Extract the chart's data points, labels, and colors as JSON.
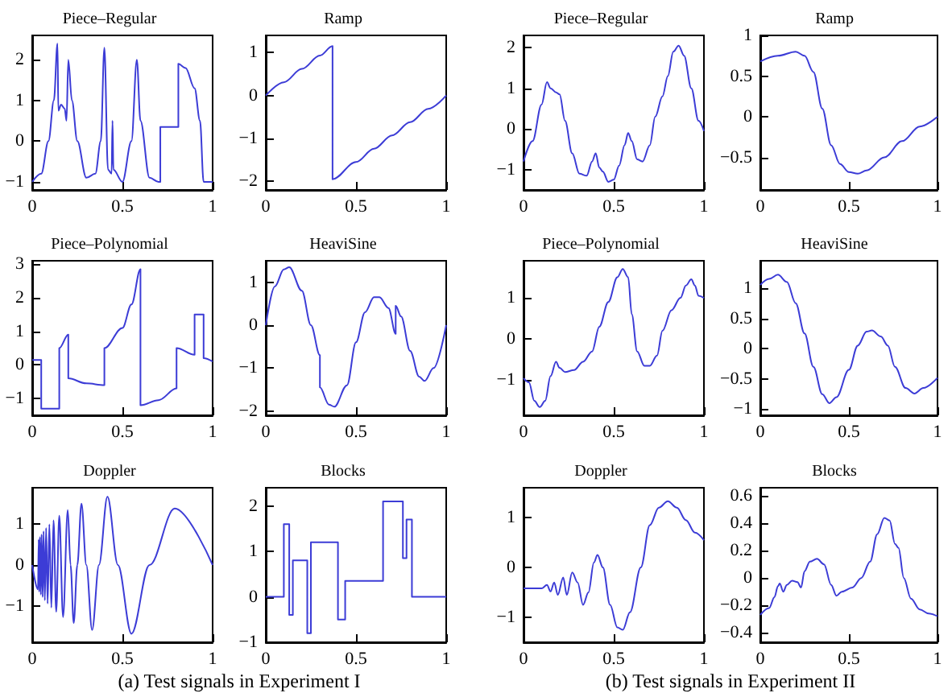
{
  "chart_data": [
    {
      "type": "line",
      "title": "Piece–Regular",
      "xlim": [
        0,
        1
      ],
      "xticks": [
        0,
        0.5,
        1
      ],
      "ylim": [
        -1.2,
        2.6
      ],
      "yticks": [
        -1,
        0,
        1,
        2
      ],
      "series": [
        {
          "color": "#3c3cd6",
          "x": [
            0,
            0.05,
            0.09,
            0.12,
            0.14,
            0.145,
            0.16,
            0.18,
            0.19,
            0.2,
            0.22,
            0.25,
            0.3,
            0.35,
            0.38,
            0.4,
            0.42,
            0.44,
            0.445,
            0.45,
            0.5,
            0.55,
            0.58,
            0.6,
            0.65,
            0.7,
            0.71,
            0.71,
            0.81,
            0.81,
            0.85,
            0.9,
            0.93,
            0.95,
            1
          ],
          "values": [
            -1,
            -0.8,
            0,
            1,
            2.4,
            0.75,
            0.9,
            0.8,
            0.5,
            2.0,
            1,
            0,
            -0.9,
            -0.8,
            0,
            2.3,
            -0.7,
            -0.8,
            0.5,
            -0.7,
            -1,
            0,
            2.0,
            0.5,
            -0.9,
            -1,
            -1,
            0.35,
            0.35,
            1.9,
            1.8,
            1.3,
            0.5,
            -1,
            -1
          ]
        }
      ]
    },
    {
      "type": "line",
      "title": "Ramp",
      "xlim": [
        0,
        1
      ],
      "xticks": [
        0,
        0.5,
        1
      ],
      "ylim": [
        -2.2,
        1.4
      ],
      "yticks": [
        -2,
        -1,
        0,
        1
      ],
      "series": [
        {
          "color": "#3c3cd6",
          "x": [
            0,
            0.1,
            0.2,
            0.3,
            0.37,
            0.37,
            0.5,
            0.6,
            0.7,
            0.8,
            0.9,
            1
          ],
          "values": [
            0,
            0.31,
            0.62,
            0.93,
            1.15,
            -1.95,
            -1.55,
            -1.24,
            -0.93,
            -0.62,
            -0.31,
            0
          ]
        }
      ]
    },
    {
      "type": "line",
      "title": "Piece–Regular",
      "xlim": [
        0,
        1
      ],
      "xticks": [
        0,
        0.5,
        1
      ],
      "ylim": [
        -1.5,
        2.3
      ],
      "yticks": [
        -1,
        0,
        1,
        2
      ],
      "series": [
        {
          "color": "#3c3cd6",
          "x": [
            0,
            0.05,
            0.1,
            0.13,
            0.15,
            0.18,
            0.2,
            0.23,
            0.27,
            0.31,
            0.35,
            0.38,
            0.4,
            0.42,
            0.44,
            0.47,
            0.5,
            0.53,
            0.56,
            0.58,
            0.6,
            0.63,
            0.66,
            0.7,
            0.73,
            0.77,
            0.8,
            0.83,
            0.86,
            0.89,
            0.93,
            0.97,
            1
          ],
          "values": [
            -0.8,
            -0.3,
            0.6,
            1.15,
            1.0,
            0.9,
            0.85,
            0.2,
            -0.6,
            -1.1,
            -1.15,
            -0.8,
            -0.6,
            -0.95,
            -1.05,
            -1.3,
            -1.25,
            -0.9,
            -0.4,
            -0.1,
            -0.3,
            -0.75,
            -0.8,
            -0.4,
            0.3,
            0.8,
            1.3,
            1.9,
            2.05,
            1.8,
            1.0,
            0.2,
            -0.05
          ]
        }
      ]
    },
    {
      "type": "line",
      "title": "Ramp",
      "xlim": [
        0,
        1
      ],
      "xticks": [
        0,
        0.5,
        1
      ],
      "ylim": [
        -0.9,
        1
      ],
      "yticks": [
        -0.5,
        0,
        0.5,
        1
      ],
      "series": [
        {
          "color": "#3c3cd6",
          "x": [
            0,
            0.1,
            0.2,
            0.25,
            0.3,
            0.35,
            0.4,
            0.45,
            0.5,
            0.55,
            0.6,
            0.7,
            0.8,
            0.9,
            1
          ],
          "values": [
            0.68,
            0.75,
            0.8,
            0.75,
            0.55,
            0.1,
            -0.35,
            -0.58,
            -0.68,
            -0.7,
            -0.66,
            -0.5,
            -0.3,
            -0.12,
            0
          ]
        }
      ]
    },
    {
      "type": "line",
      "title": "Piece–Polynomial",
      "xlim": [
        0,
        1
      ],
      "xticks": [
        0,
        0.5,
        1
      ],
      "ylim": [
        -1.5,
        3.1
      ],
      "yticks": [
        -1,
        0,
        1,
        2,
        3
      ],
      "series": [
        {
          "color": "#3c3cd6",
          "x": [
            0,
            0.05,
            0.05,
            0.15,
            0.15,
            0.2,
            0.2,
            0.3,
            0.4,
            0.4,
            0.5,
            0.55,
            0.6,
            0.6,
            0.7,
            0.8,
            0.8,
            0.9,
            0.9,
            0.95,
            0.95,
            1
          ],
          "values": [
            0.15,
            0.15,
            -1.3,
            -1.3,
            0.5,
            0.9,
            -0.4,
            -0.55,
            -0.6,
            0.5,
            1.1,
            1.8,
            2.85,
            -1.2,
            -1.05,
            -0.7,
            0.5,
            0.3,
            1.5,
            1.5,
            0.2,
            0.1
          ]
        }
      ]
    },
    {
      "type": "line",
      "title": "HeaviSine",
      "xlim": [
        0,
        1
      ],
      "xticks": [
        0,
        0.5,
        1
      ],
      "ylim": [
        -2.1,
        1.5
      ],
      "yticks": [
        -2,
        -1,
        0,
        1
      ],
      "series": [
        {
          "color": "#3c3cd6",
          "x": [
            0,
            0.05,
            0.1,
            0.13,
            0.2,
            0.25,
            0.3,
            0.3,
            0.35,
            0.38,
            0.45,
            0.5,
            0.55,
            0.6,
            0.63,
            0.68,
            0.72,
            0.72,
            0.75,
            0.8,
            0.85,
            0.88,
            0.93,
            1
          ],
          "values": [
            0,
            0.9,
            1.3,
            1.35,
            0.8,
            0,
            -0.7,
            -1.45,
            -1.85,
            -1.9,
            -1.4,
            -0.4,
            0.3,
            0.65,
            0.65,
            0.4,
            -0.2,
            0.45,
            0.2,
            -0.6,
            -1.2,
            -1.3,
            -1,
            0
          ]
        }
      ]
    },
    {
      "type": "line",
      "title": "Piece–Polynomial",
      "xlim": [
        0,
        1
      ],
      "xticks": [
        0,
        0.5,
        1
      ],
      "ylim": [
        -1.85,
        1.9
      ],
      "yticks": [
        -1,
        0,
        1
      ],
      "series": [
        {
          "color": "#3c3cd6",
          "x": [
            0,
            0.03,
            0.06,
            0.09,
            0.12,
            0.15,
            0.18,
            0.2,
            0.23,
            0.28,
            0.33,
            0.38,
            0.42,
            0.47,
            0.52,
            0.55,
            0.58,
            0.6,
            0.63,
            0.67,
            0.7,
            0.74,
            0.77,
            0.82,
            0.87,
            0.9,
            0.93,
            0.95,
            0.97,
            1
          ],
          "values": [
            -0.95,
            -1.05,
            -1.5,
            -1.65,
            -1.5,
            -0.9,
            -0.55,
            -0.7,
            -0.8,
            -0.75,
            -0.55,
            -0.3,
            0.3,
            0.9,
            1.5,
            1.7,
            1.5,
            0.6,
            -0.3,
            -0.65,
            -0.65,
            -0.4,
            0.2,
            0.7,
            1.0,
            1.3,
            1.45,
            1.3,
            1.05,
            1.0
          ]
        }
      ]
    },
    {
      "type": "line",
      "title": "HeaviSine",
      "xlim": [
        0,
        1
      ],
      "xticks": [
        0,
        0.5,
        1
      ],
      "ylim": [
        -1.1,
        1.45
      ],
      "yticks": [
        -1,
        -0.5,
        0,
        0.5,
        1
      ],
      "series": [
        {
          "color": "#3c3cd6",
          "x": [
            0,
            0.05,
            0.1,
            0.15,
            0.2,
            0.25,
            0.3,
            0.35,
            0.39,
            0.43,
            0.5,
            0.55,
            0.6,
            0.63,
            0.68,
            0.72,
            0.76,
            0.82,
            0.87,
            0.92,
            1
          ],
          "values": [
            1.05,
            1.15,
            1.22,
            1.1,
            0.75,
            0.25,
            -0.3,
            -0.75,
            -0.9,
            -0.8,
            -0.35,
            0.05,
            0.28,
            0.3,
            0.2,
            0.05,
            -0.3,
            -0.65,
            -0.74,
            -0.65,
            -0.48
          ]
        }
      ]
    },
    {
      "type": "line",
      "title": "Doppler",
      "annotations": [
        "(a)  Test signals in Experiment I"
      ],
      "xlim": [
        0,
        1
      ],
      "xticks": [
        0,
        0.5,
        1
      ],
      "ylim": [
        -1.9,
        1.9
      ],
      "yticks": [
        -1,
        0,
        1
      ],
      "series": [
        {
          "color": "#3c3cd6",
          "x": [
            0,
            0.032,
            0.036,
            0.039,
            0.043,
            0.048,
            0.052,
            0.058,
            0.063,
            0.07,
            0.077,
            0.0855,
            0.095,
            0.106,
            0.118,
            0.133,
            0.15,
            0.171,
            0.197,
            0.2125,
            0.23,
            0.25,
            0.273,
            0.3,
            0.332,
            0.37,
            0.417,
            0.475,
            0.55,
            0.65,
            0.79,
            1
          ],
          "values": [
            0,
            -0.6,
            0.63,
            -0.66,
            0.69,
            -0.73,
            0.75,
            -0.79,
            0.83,
            -0.87,
            0.91,
            -0.95,
            1.0,
            -1.05,
            1.1,
            -1.15,
            1.21,
            -1.28,
            1.35,
            0,
            -1.43,
            0,
            1.51,
            0,
            -1.6,
            0,
            1.68,
            0,
            -1.69,
            0,
            1.39,
            0
          ]
        }
      ]
    },
    {
      "type": "line",
      "title": "Blocks",
      "xlim": [
        0,
        1
      ],
      "xticks": [
        0,
        0.5,
        1
      ],
      "ylim": [
        -1,
        2.4
      ],
      "yticks": [
        -1,
        0,
        1,
        2
      ],
      "series": [
        {
          "color": "#3c3cd6",
          "x": [
            0,
            0.1,
            0.1,
            0.13,
            0.13,
            0.15,
            0.15,
            0.23,
            0.23,
            0.25,
            0.25,
            0.4,
            0.4,
            0.44,
            0.44,
            0.65,
            0.65,
            0.76,
            0.76,
            0.78,
            0.78,
            0.81,
            0.81,
            1
          ],
          "values": [
            0,
            0,
            1.6,
            1.6,
            -0.4,
            -0.4,
            0.8,
            0.8,
            -0.8,
            -0.8,
            1.2,
            1.2,
            -0.5,
            -0.5,
            0.35,
            0.35,
            2.1,
            2.1,
            0.85,
            0.85,
            1.7,
            1.7,
            0,
            0
          ]
        }
      ]
    },
    {
      "type": "line",
      "title": "Doppler",
      "annotations": [
        "(b)  Test signals in Experiment II"
      ],
      "xlim": [
        0,
        1
      ],
      "xticks": [
        0,
        0.5,
        1
      ],
      "ylim": [
        -1.5,
        1.6
      ],
      "yticks": [
        -1,
        0,
        1
      ],
      "series": [
        {
          "color": "#3c3cd6",
          "x": [
            0,
            0.05,
            0.1,
            0.13,
            0.15,
            0.17,
            0.19,
            0.22,
            0.24,
            0.27,
            0.3,
            0.33,
            0.36,
            0.39,
            0.41,
            0.44,
            0.48,
            0.52,
            0.55,
            0.59,
            0.65,
            0.7,
            0.75,
            0.8,
            0.85,
            0.9,
            0.95,
            1
          ],
          "values": [
            -0.42,
            -0.42,
            -0.42,
            -0.35,
            -0.48,
            -0.3,
            -0.55,
            -0.2,
            -0.55,
            -0.1,
            -0.3,
            -0.75,
            -0.5,
            0.1,
            0.25,
            0,
            -0.75,
            -1.2,
            -1.25,
            -0.9,
            0,
            0.85,
            1.2,
            1.33,
            1.2,
            0.95,
            0.7,
            0.55
          ]
        }
      ]
    },
    {
      "type": "line",
      "title": "Blocks",
      "xlim": [
        0,
        1
      ],
      "xticks": [
        0,
        0.5,
        1
      ],
      "ylim": [
        -0.47,
        0.66
      ],
      "yticks": [
        -0.4,
        -0.2,
        0,
        0.2,
        0.4,
        0.6
      ],
      "series": [
        {
          "color": "#3c3cd6",
          "x": [
            0,
            0.05,
            0.08,
            0.1,
            0.11,
            0.13,
            0.15,
            0.18,
            0.21,
            0.23,
            0.25,
            0.28,
            0.32,
            0.36,
            0.4,
            0.43,
            0.46,
            0.52,
            0.57,
            0.62,
            0.66,
            0.7,
            0.73,
            0.76,
            0.78,
            0.81,
            0.85,
            0.9,
            0.95,
            1
          ],
          "values": [
            -0.27,
            -0.22,
            -0.14,
            -0.06,
            -0.04,
            -0.1,
            -0.05,
            -0.02,
            -0.03,
            -0.07,
            0.05,
            0.12,
            0.14,
            0.1,
            -0.05,
            -0.13,
            -0.1,
            -0.07,
            0,
            0.12,
            0.32,
            0.44,
            0.42,
            0.25,
            0.22,
            0,
            -0.15,
            -0.23,
            -0.26,
            -0.28
          ]
        }
      ]
    }
  ]
}
